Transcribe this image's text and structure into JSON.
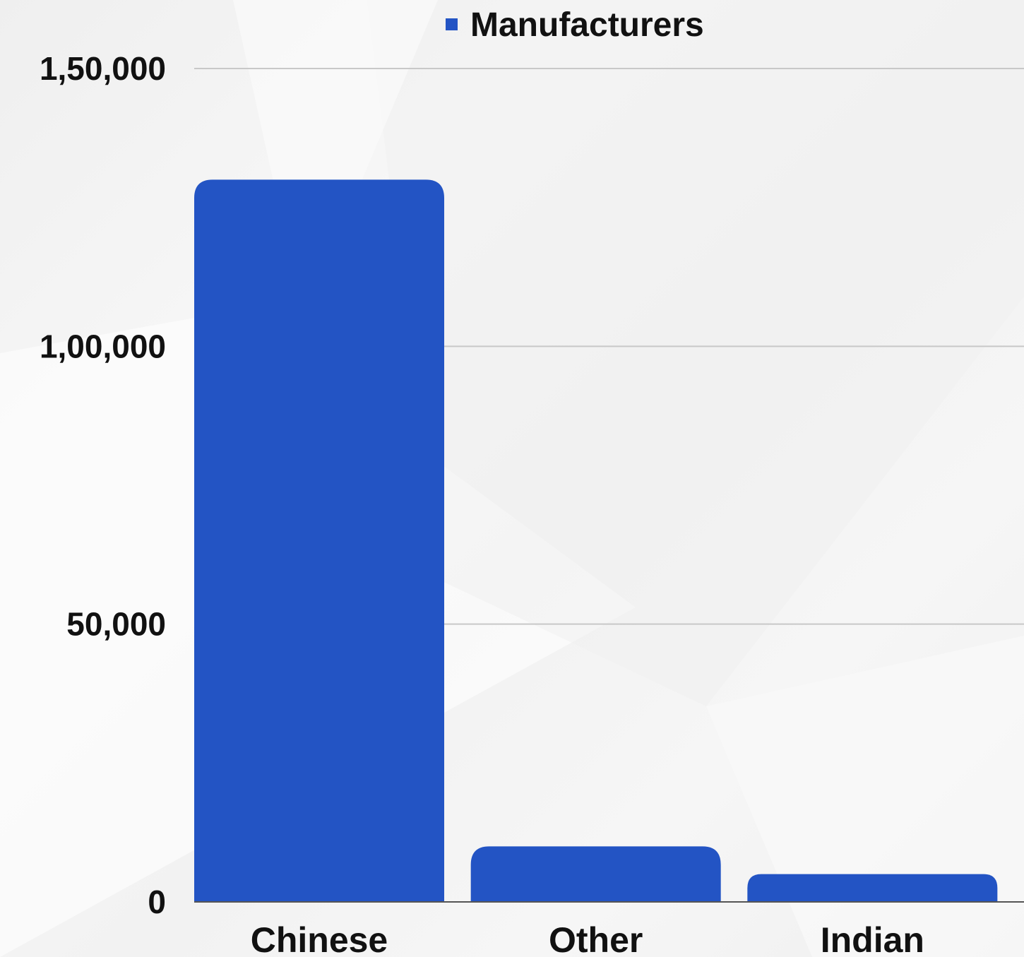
{
  "chart_data": {
    "type": "bar",
    "categories": [
      "Chinese",
      "Other",
      "Indian"
    ],
    "series": [
      {
        "name": "Manufacturers",
        "values": [
          130000,
          10000,
          5000
        ],
        "color": "#2354c4"
      }
    ],
    "title": "",
    "xlabel": "",
    "ylabel": "",
    "ylim": [
      0,
      150000
    ],
    "y_ticks": [
      {
        "value": 0,
        "label": "0"
      },
      {
        "value": 50000,
        "label": "50,000"
      },
      {
        "value": 100000,
        "label": "1,00,000"
      },
      {
        "value": 150000,
        "label": "1,50,000"
      }
    ],
    "legend": {
      "position": "top-center",
      "label": "Manufacturers",
      "color": "#2354c4"
    },
    "grid": true,
    "gridline_color": "#c8c8c8",
    "axis_color": "#555555"
  }
}
